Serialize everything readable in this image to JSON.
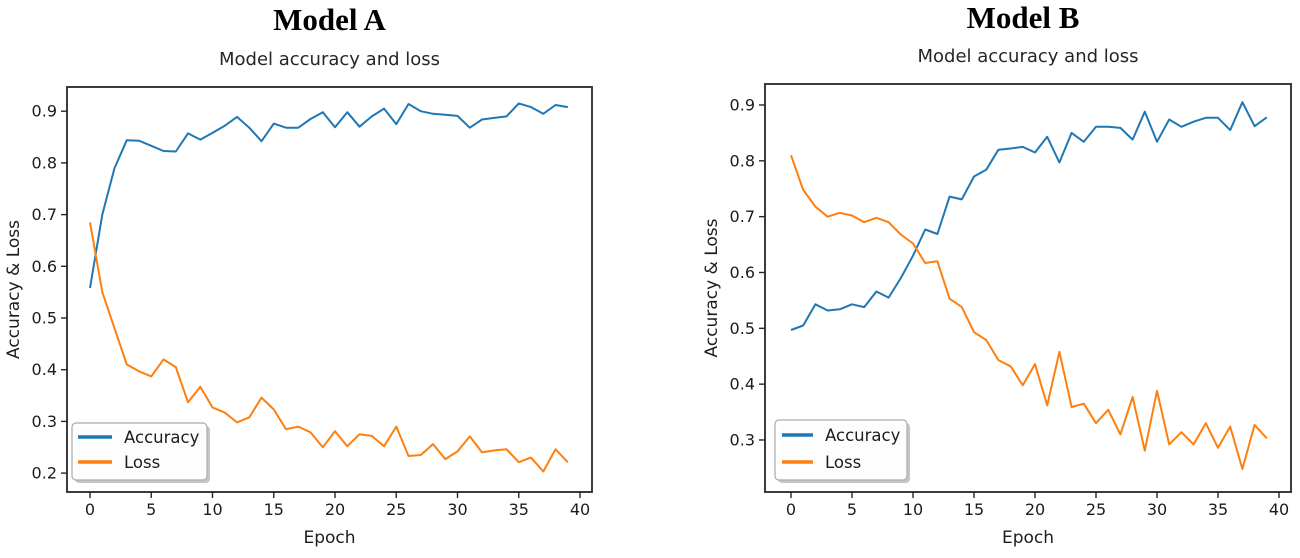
{
  "page": {
    "background": "#ffffff",
    "accuracy_color": "#1f77b4",
    "loss_color": "#ff7f0e"
  },
  "chart_data": [
    {
      "type": "line",
      "suptitle": "Model A",
      "title": "Model accuracy and loss",
      "xlabel": "Epoch",
      "ylabel": "Accuracy & Loss",
      "legend_position": "lower left",
      "grid": false,
      "xticks": [
        0,
        5,
        10,
        15,
        20,
        25,
        30,
        35,
        40
      ],
      "yticks": [
        0.2,
        0.3,
        0.4,
        0.5,
        0.6,
        0.7,
        0.8,
        0.9
      ],
      "xlim": [
        -1.9,
        41
      ],
      "ylim": [
        0.165,
        0.945
      ],
      "x": [
        0,
        1,
        2,
        3,
        4,
        5,
        6,
        7,
        8,
        9,
        10,
        11,
        12,
        13,
        14,
        15,
        16,
        17,
        18,
        19,
        20,
        21,
        22,
        23,
        24,
        25,
        26,
        27,
        28,
        29,
        30,
        31,
        32,
        33,
        34,
        35,
        36,
        37,
        38,
        39
      ],
      "series": [
        {
          "name": "Accuracy",
          "color": "#1f77b4",
          "values": [
            0.558,
            0.7,
            0.79,
            0.844,
            0.843,
            0.833,
            0.823,
            0.822,
            0.857,
            0.845,
            0.858,
            0.872,
            0.889,
            0.868,
            0.842,
            0.876,
            0.868,
            0.868,
            0.885,
            0.898,
            0.869,
            0.898,
            0.87,
            0.89,
            0.905,
            0.875,
            0.914,
            0.9,
            0.895,
            0.893,
            0.891,
            0.868,
            0.884,
            0.887,
            0.89,
            0.915,
            0.908,
            0.895,
            0.912,
            0.908
          ]
        },
        {
          "name": "Loss",
          "color": "#ff7f0e",
          "values": [
            0.685,
            0.55,
            0.48,
            0.41,
            0.397,
            0.387,
            0.42,
            0.405,
            0.337,
            0.367,
            0.327,
            0.317,
            0.298,
            0.308,
            0.346,
            0.323,
            0.285,
            0.29,
            0.279,
            0.25,
            0.281,
            0.252,
            0.275,
            0.272,
            0.252,
            0.29,
            0.233,
            0.235,
            0.256,
            0.227,
            0.242,
            0.271,
            0.24,
            0.244,
            0.246,
            0.221,
            0.23,
            0.203,
            0.246,
            0.221
          ]
        }
      ]
    },
    {
      "type": "line",
      "suptitle": "Model B",
      "title": "Model accuracy and loss",
      "xlabel": "Epoch",
      "ylabel": "Accuracy & Loss",
      "legend_position": "lower left",
      "grid": false,
      "xticks": [
        0,
        5,
        10,
        15,
        20,
        25,
        30,
        35,
        40
      ],
      "yticks": [
        0.3,
        0.4,
        0.5,
        0.6,
        0.7,
        0.8,
        0.9
      ],
      "xlim": [
        -2.1,
        41
      ],
      "ylim": [
        0.207,
        0.938
      ],
      "x": [
        0,
        1,
        2,
        3,
        4,
        5,
        6,
        7,
        8,
        9,
        10,
        11,
        12,
        13,
        14,
        15,
        16,
        17,
        18,
        19,
        20,
        21,
        22,
        23,
        24,
        25,
        26,
        27,
        28,
        29,
        30,
        31,
        32,
        33,
        34,
        35,
        36,
        37,
        38,
        39
      ],
      "series": [
        {
          "name": "Accuracy",
          "color": "#1f77b4",
          "values": [
            0.497,
            0.505,
            0.543,
            0.532,
            0.534,
            0.543,
            0.538,
            0.566,
            0.555,
            0.59,
            0.63,
            0.677,
            0.669,
            0.736,
            0.731,
            0.772,
            0.784,
            0.82,
            0.822,
            0.825,
            0.815,
            0.843,
            0.797,
            0.85,
            0.834,
            0.861,
            0.861,
            0.859,
            0.838,
            0.888,
            0.834,
            0.874,
            0.861,
            0.87,
            0.877,
            0.877,
            0.855,
            0.905,
            0.862,
            0.878
          ]
        },
        {
          "name": "Loss",
          "color": "#ff7f0e",
          "values": [
            0.81,
            0.748,
            0.718,
            0.7,
            0.707,
            0.702,
            0.69,
            0.698,
            0.69,
            0.668,
            0.652,
            0.617,
            0.62,
            0.553,
            0.538,
            0.493,
            0.479,
            0.443,
            0.432,
            0.398,
            0.436,
            0.362,
            0.458,
            0.359,
            0.365,
            0.33,
            0.354,
            0.31,
            0.377,
            0.281,
            0.388,
            0.292,
            0.314,
            0.292,
            0.33,
            0.286,
            0.324,
            0.248,
            0.327,
            0.303
          ]
        }
      ]
    }
  ]
}
